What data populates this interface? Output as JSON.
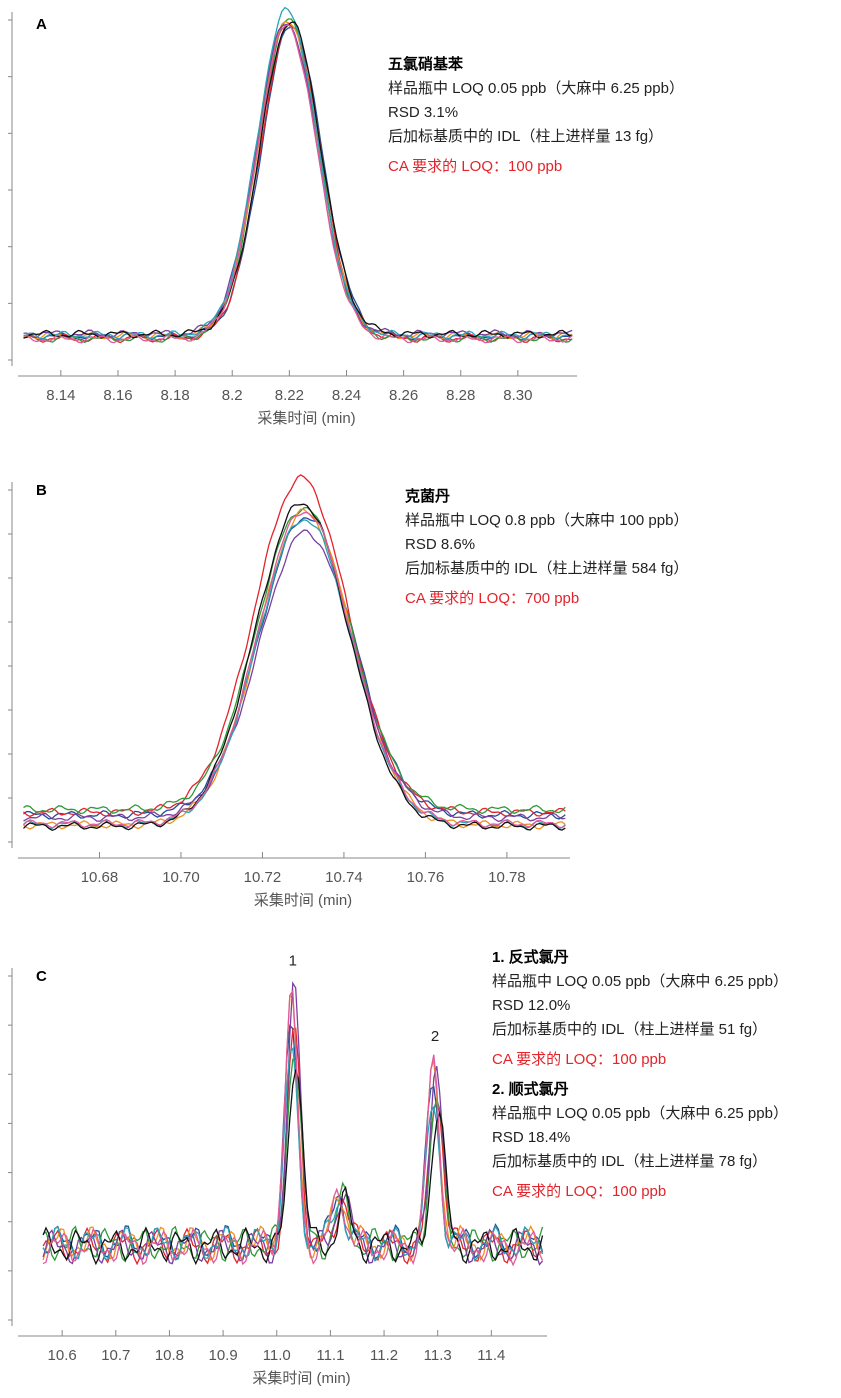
{
  "colors": [
    "#1f4e9c",
    "#e3242b",
    "#2e9a3a",
    "#f0901e",
    "#7b3fa0",
    "#2aa3b8",
    "#111111",
    "#e05a9a"
  ],
  "chart_data": [
    {
      "type": "line",
      "panel_label": "A",
      "xlabel": "采集时间 (min)",
      "xlim": [
        8.125,
        8.32
      ],
      "xticks": [
        8.14,
        8.16,
        8.18,
        8.2,
        8.22,
        8.24,
        8.26,
        8.28,
        8.3
      ],
      "xtick_labels": [
        "8.14",
        "8.16",
        "8.18",
        "8.2",
        "8.22",
        "8.24",
        "8.26",
        "8.28",
        "8.30"
      ],
      "ylim": [
        0,
        1.12
      ],
      "series_count": 8,
      "baseline": 0.1,
      "peaks": [
        {
          "center": 8.22,
          "height": 1.0,
          "width": 0.0105,
          "label": ""
        }
      ],
      "annotations": [
        {
          "name": "五氯硝基苯",
          "loq": "样品瓶中 LOQ 0.05 ppb（大麻中 6.25 ppb）",
          "rsd": "RSD 3.1%",
          "idl": "后加标基质中的 IDL（柱上进样量 13 fg）",
          "ca_req": "CA 要求的 LOQ：100 ppb"
        }
      ]
    },
    {
      "type": "line",
      "panel_label": "B",
      "xlabel": "采集时间 (min)",
      "xlim": [
        10.66,
        10.795
      ],
      "xticks": [
        10.68,
        10.7,
        10.72,
        10.74,
        10.76,
        10.78
      ],
      "xtick_labels": [
        "10.68",
        "10.70",
        "10.72",
        "10.74",
        "10.76",
        "10.78"
      ],
      "ylim": [
        0,
        1.12
      ],
      "series_count": 8,
      "baseline": 0.1,
      "peaks": [
        {
          "center": 10.73,
          "height": 0.95,
          "width": 0.0115,
          "label": ""
        }
      ],
      "annotations": [
        {
          "name": "克菌丹",
          "loq": "样品瓶中 LOQ 0.8 ppb（大麻中 100 ppb）",
          "rsd": "RSD 8.6%",
          "idl": "后加标基质中的 IDL（柱上进样量 584 fg）",
          "ca_req": "CA 要求的 LOQ：700 ppb"
        }
      ]
    },
    {
      "type": "line",
      "panel_label": "C",
      "xlabel": "采集时间 (min)",
      "xlim": [
        10.555,
        11.5
      ],
      "xticks": [
        10.6,
        10.7,
        10.8,
        10.9,
        11.0,
        11.1,
        11.2,
        11.3,
        11.4
      ],
      "xtick_labels": [
        "10.6",
        "10.7",
        "10.8",
        "10.9",
        "11.0",
        "11.1",
        "11.2",
        "11.3",
        "11.4"
      ],
      "ylim": [
        0,
        1.12
      ],
      "series_count": 8,
      "baseline": 0.26,
      "peaks": [
        {
          "center": 11.03,
          "height": 0.72,
          "width": 0.012,
          "label": "1"
        },
        {
          "center": 11.12,
          "height": 0.16,
          "width": 0.012,
          "label": ""
        },
        {
          "center": 11.295,
          "height": 0.52,
          "width": 0.012,
          "label": "2"
        }
      ],
      "annotations": [
        {
          "name": "1. 反式氯丹",
          "loq": "样品瓶中 LOQ 0.05 ppb（大麻中 6.25 ppb）",
          "rsd": "RSD 12.0%",
          "idl": "后加标基质中的 IDL（柱上进样量 51 fg）",
          "ca_req": "CA 要求的 LOQ：100 ppb"
        },
        {
          "name": "2. 顺式氯丹",
          "loq": "样品瓶中 LOQ 0.05 ppb（大麻中 6.25 ppb）",
          "rsd": "RSD 18.4%",
          "idl": "后加标基质中的 IDL（柱上进样量 78 fg）",
          "ca_req": "CA 要求的 LOQ：100 ppb"
        }
      ]
    }
  ]
}
